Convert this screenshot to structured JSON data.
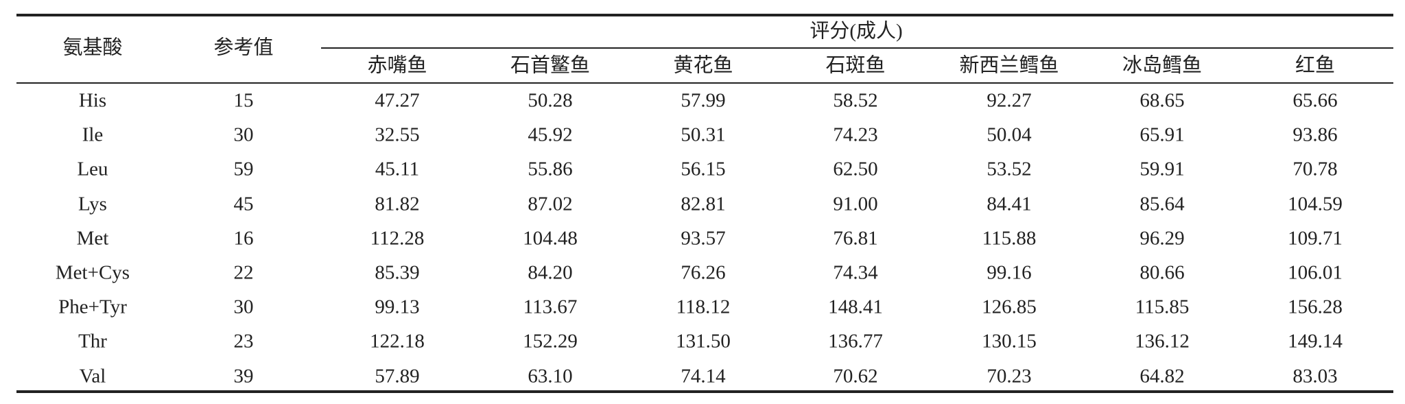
{
  "table": {
    "header": {
      "amino_acid": "氨基酸",
      "reference": "参考值",
      "group": "评分(成人)",
      "columns": [
        "赤嘴鱼",
        "石首鳘鱼",
        "黄花鱼",
        "石斑鱼",
        "新西兰鳕鱼",
        "冰岛鳕鱼",
        "红鱼"
      ]
    },
    "rows": [
      [
        "His",
        "15",
        "47.27",
        "50.28",
        "57.99",
        "58.52",
        "92.27",
        "68.65",
        "65.66"
      ],
      [
        "Ile",
        "30",
        "32.55",
        "45.92",
        "50.31",
        "74.23",
        "50.04",
        "65.91",
        "93.86"
      ],
      [
        "Leu",
        "59",
        "45.11",
        "55.86",
        "56.15",
        "62.50",
        "53.52",
        "59.91",
        "70.78"
      ],
      [
        "Lys",
        "45",
        "81.82",
        "87.02",
        "82.81",
        "91.00",
        "84.41",
        "85.64",
        "104.59"
      ],
      [
        "Met",
        "16",
        "112.28",
        "104.48",
        "93.57",
        "76.81",
        "115.88",
        "96.29",
        "109.71"
      ],
      [
        "Met+Cys",
        "22",
        "85.39",
        "84.20",
        "76.26",
        "74.34",
        "99.16",
        "80.66",
        "106.01"
      ],
      [
        "Phe+Tyr",
        "30",
        "99.13",
        "113.67",
        "118.12",
        "148.41",
        "126.85",
        "115.85",
        "156.28"
      ],
      [
        "Thr",
        "23",
        "122.18",
        "152.29",
        "131.50",
        "136.77",
        "130.15",
        "136.12",
        "149.14"
      ],
      [
        "Val",
        "39",
        "57.89",
        "63.10",
        "74.14",
        "70.62",
        "70.23",
        "64.82",
        "83.03"
      ]
    ]
  }
}
